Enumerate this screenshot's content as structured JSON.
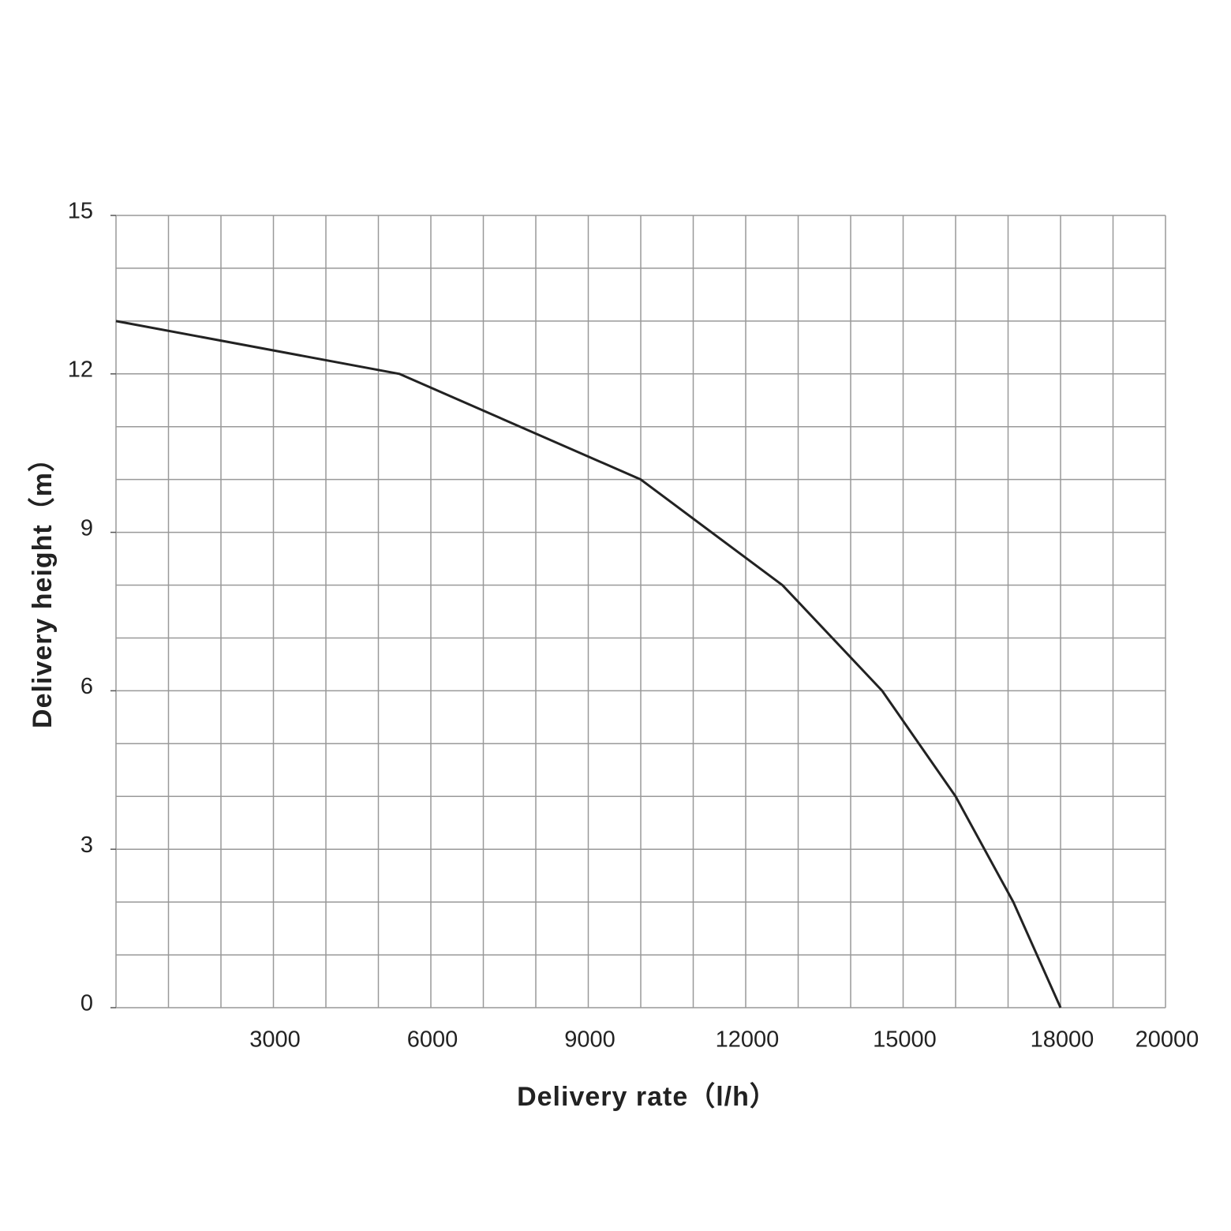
{
  "chart_data": {
    "type": "line",
    "x_label": "Delivery rate（l/h）",
    "y_label": "Delivery height（m）",
    "xlim": [
      0,
      20000
    ],
    "ylim": [
      0,
      15
    ],
    "xticks": [
      3000,
      6000,
      9000,
      12000,
      15000,
      18000,
      20000
    ],
    "yticks": [
      0,
      3,
      6,
      9,
      12,
      15
    ],
    "xgrid": [
      0,
      1000,
      2000,
      3000,
      4000,
      5000,
      6000,
      7000,
      8000,
      9000,
      10000,
      11000,
      12000,
      13000,
      14000,
      15000,
      16000,
      17000,
      18000,
      19000,
      20000
    ],
    "ygrid": [
      0,
      1,
      2,
      3,
      4,
      5,
      6,
      7,
      8,
      9,
      10,
      11,
      12,
      13,
      14,
      15
    ],
    "grid": true,
    "series": [
      {
        "color": "#222222",
        "x": [
          0,
          5400,
          10000,
          12700,
          14600,
          16000,
          17100,
          18000
        ],
        "values": [
          13,
          12,
          10,
          8,
          6,
          4,
          2,
          0
        ]
      }
    ]
  }
}
